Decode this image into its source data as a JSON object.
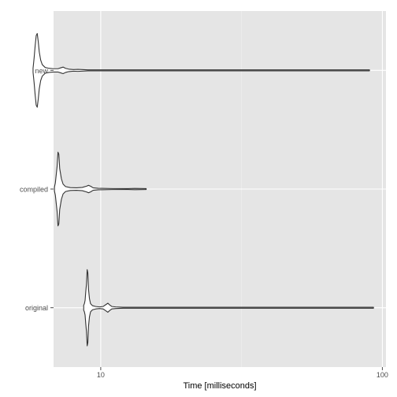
{
  "chart_data": {
    "type": "violin",
    "orientation": "horizontal",
    "xlabel": "Time [milliseconds]",
    "ylabel": "",
    "x_scale": "log10",
    "xlim": [
      6.8,
      103
    ],
    "x_ticks": [
      10,
      100
    ],
    "x_tick_labels": [
      "10",
      "100"
    ],
    "x_minor_ticks": [
      31.6
    ],
    "categories": [
      "original",
      "compiled",
      "new"
    ],
    "grid": true,
    "legend": "none",
    "series": [
      {
        "category": "original",
        "median": 8.9,
        "min": 8.7,
        "max": 93,
        "profile": [
          [
            8.7,
            0.06
          ],
          [
            8.75,
            0.1
          ],
          [
            8.8,
            0.18
          ],
          [
            8.85,
            0.4
          ],
          [
            8.9,
            0.58
          ],
          [
            8.95,
            0.93
          ],
          [
            9.0,
            0.85
          ],
          [
            9.05,
            0.45
          ],
          [
            9.12,
            0.22
          ],
          [
            9.2,
            0.1
          ],
          [
            9.35,
            0.05
          ],
          [
            9.6,
            0.03
          ],
          [
            9.9,
            0.02
          ],
          [
            10.2,
            0.03
          ],
          [
            10.45,
            0.08
          ],
          [
            10.6,
            0.11
          ],
          [
            10.75,
            0.07
          ],
          [
            10.95,
            0.03
          ],
          [
            11.3,
            0.02
          ],
          [
            12.0,
            0.012
          ],
          [
            13.5,
            0.008
          ],
          [
            15.0,
            0.012
          ],
          [
            16.0,
            0.006
          ],
          [
            25.0,
            0.004
          ],
          [
            50.0,
            0.003
          ],
          [
            93.0,
            0.002
          ]
        ]
      },
      {
        "category": "compiled",
        "median": 7.0,
        "min": 6.85,
        "max": 14.5,
        "profile": [
          [
            6.85,
            0.05
          ],
          [
            6.9,
            0.15
          ],
          [
            6.95,
            0.35
          ],
          [
            7.0,
            0.55
          ],
          [
            7.05,
            0.9
          ],
          [
            7.1,
            0.85
          ],
          [
            7.15,
            0.5
          ],
          [
            7.25,
            0.25
          ],
          [
            7.35,
            0.12
          ],
          [
            7.5,
            0.06
          ],
          [
            7.8,
            0.035
          ],
          [
            8.2,
            0.03
          ],
          [
            8.6,
            0.04
          ],
          [
            8.9,
            0.07
          ],
          [
            9.05,
            0.09
          ],
          [
            9.2,
            0.07
          ],
          [
            9.4,
            0.03
          ],
          [
            9.8,
            0.018
          ],
          [
            11.0,
            0.012
          ],
          [
            12.5,
            0.01
          ],
          [
            13.2,
            0.015
          ],
          [
            14.5,
            0.005
          ]
        ]
      },
      {
        "category": "new",
        "median": 5.8,
        "min": 5.75,
        "max": 90,
        "profile": [
          [
            5.75,
            0.05
          ],
          [
            5.8,
            0.3
          ],
          [
            5.85,
            0.6
          ],
          [
            5.9,
            0.85
          ],
          [
            5.95,
            0.9
          ],
          [
            6.0,
            0.7
          ],
          [
            6.05,
            0.45
          ],
          [
            6.12,
            0.25
          ],
          [
            6.2,
            0.14
          ],
          [
            6.35,
            0.07
          ],
          [
            6.55,
            0.05
          ],
          [
            6.8,
            0.04
          ],
          [
            7.05,
            0.04
          ],
          [
            7.2,
            0.06
          ],
          [
            7.35,
            0.08
          ],
          [
            7.5,
            0.05
          ],
          [
            7.7,
            0.03
          ],
          [
            8.0,
            0.02
          ],
          [
            8.3,
            0.025
          ],
          [
            9.0,
            0.012
          ],
          [
            12.0,
            0.008
          ],
          [
            30.0,
            0.005
          ],
          [
            90.0,
            0.002
          ]
        ]
      }
    ],
    "colors": {
      "panel": "#e5e5e5",
      "grid_major": "#ffffff",
      "grid_minor": "#f2f2f2",
      "violin_fill": "#ffffff",
      "violin_stroke": "#333333",
      "tick_text": "#4d4d4d",
      "axis_title": "#000000"
    }
  }
}
